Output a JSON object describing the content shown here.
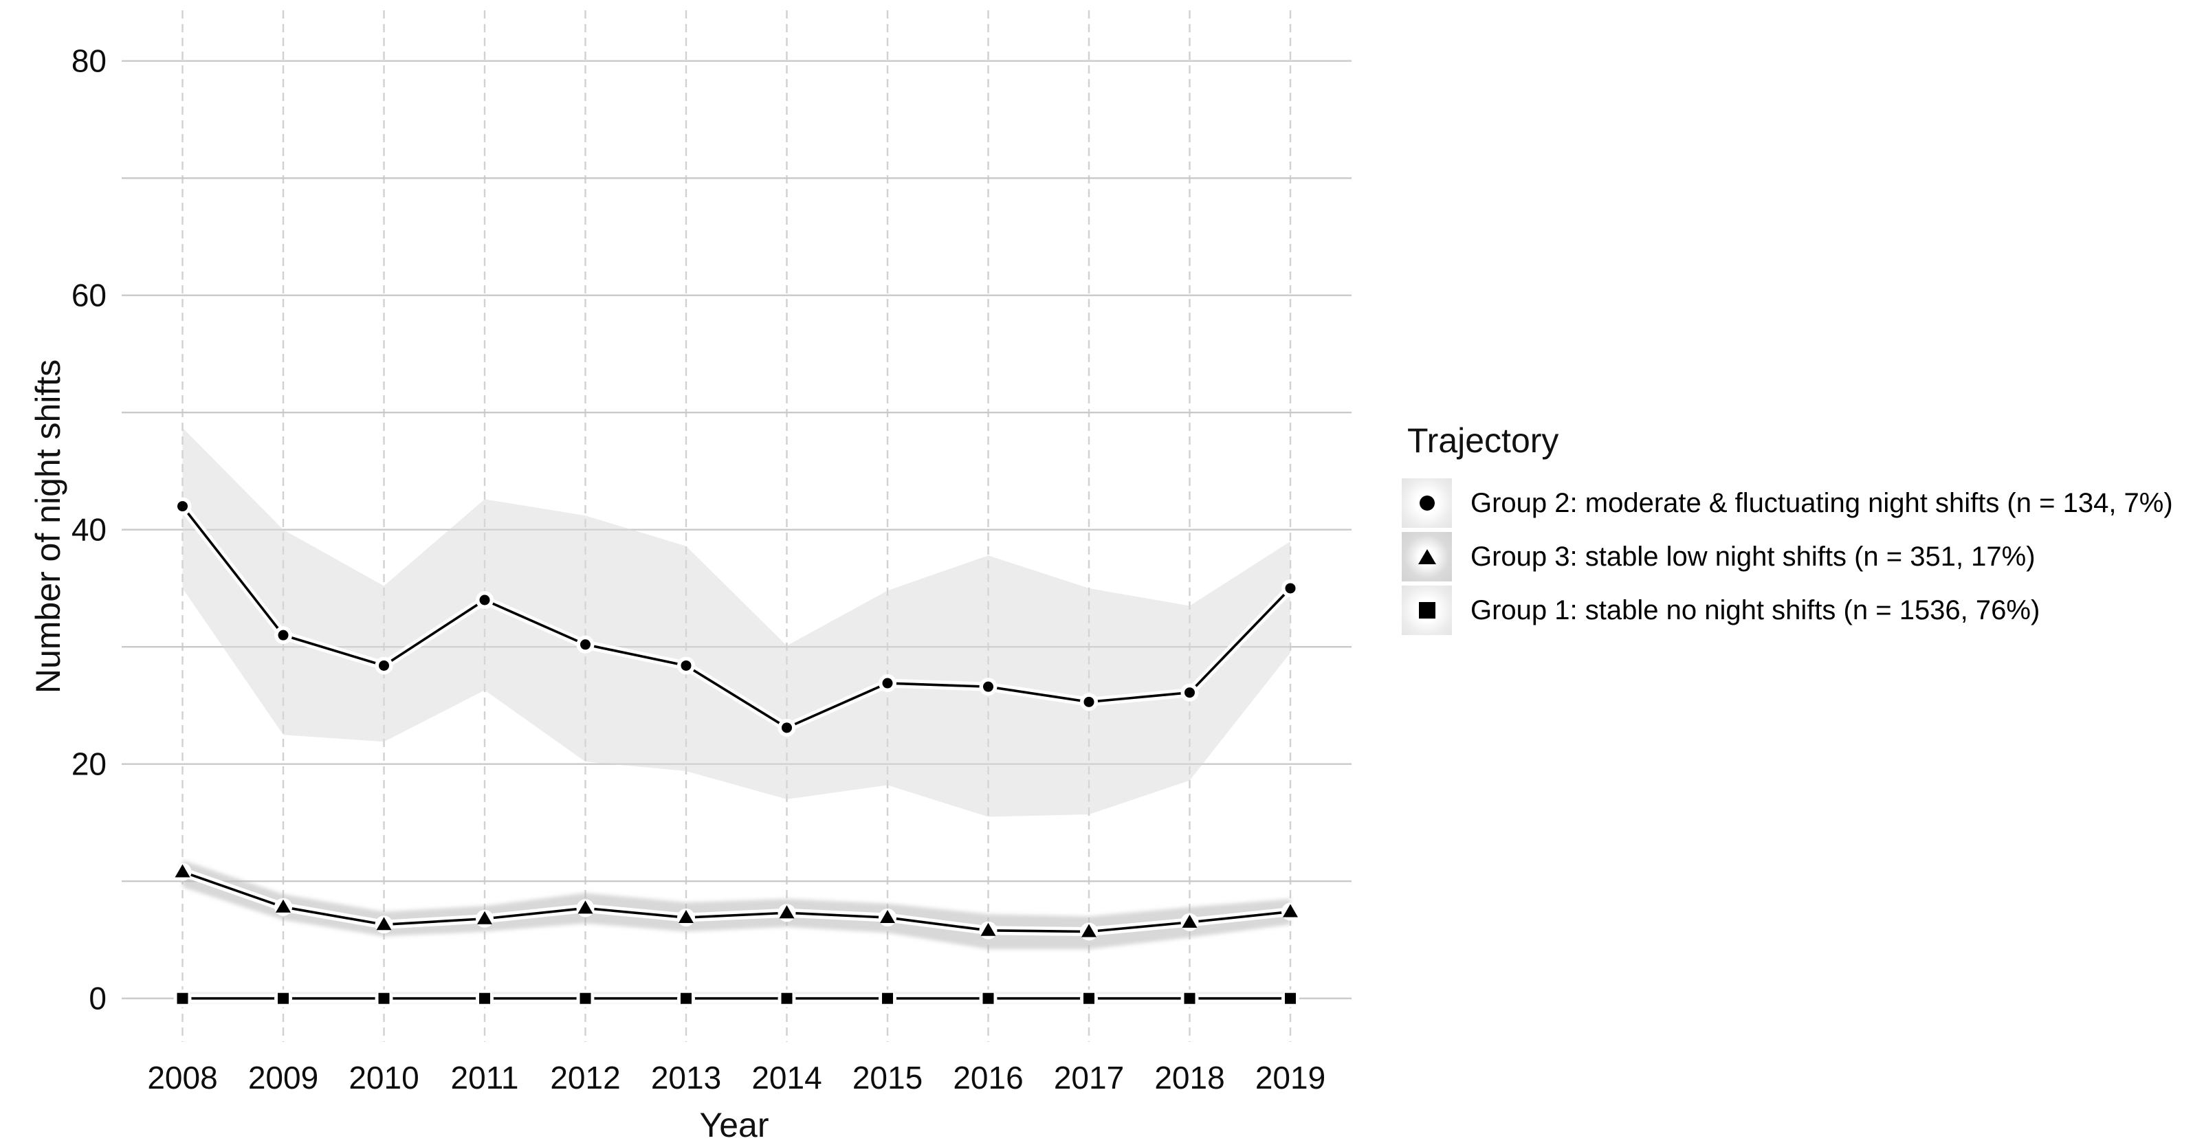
{
  "figure": {
    "background": "#ffffff",
    "kind": "longitudinal trajectory line chart with confidence ribbons"
  },
  "colors": {
    "line": "#000000",
    "text": "#111111",
    "tick_text": "#0d0d0d",
    "gridline": "#c9c9c9",
    "ribbon_group2": "#d9d9d9",
    "ribbon_group3": "#b8b8b8",
    "ribbon_group1": "#c2c2c2",
    "halo": "#ffffff",
    "legend_key_light": "#ececec",
    "legend_key_mid": "#d6d6d6"
  },
  "axes": {
    "x_title": "Year",
    "y_title": "Number of night shifts",
    "x_tick_labels": [
      "2008",
      "2009",
      "2010",
      "2011",
      "2012",
      "2013",
      "2014",
      "2015",
      "2016",
      "2017",
      "2018",
      "2019"
    ],
    "y_tick_labels": [
      "0",
      "20",
      "40",
      "60",
      "80"
    ]
  },
  "legend": {
    "title": "Trajectory",
    "items": [
      {
        "label": "Group 2: moderate & fluctuating night shifts (n = 134, 7%)",
        "marker": "circle-icon",
        "marker_class": "key-marker marker-circle",
        "key_class": "legend-key key-light"
      },
      {
        "label": "Group 3: stable low night shifts (n = 351, 17%)",
        "marker": "triangle-icon",
        "marker_class": "key-marker marker-triangle",
        "key_class": "legend-key key-mid"
      },
      {
        "label": "Group 1: stable no night shifts (n = 1536, 76%)",
        "marker": "square-icon",
        "marker_class": "key-marker marker-square",
        "key_class": "legend-key key-light"
      }
    ]
  },
  "chart_data": {
    "type": "line",
    "title": "",
    "xlabel": "Year",
    "ylabel": "Number of night shifts",
    "x": [
      2008,
      2009,
      2010,
      2011,
      2012,
      2013,
      2014,
      2015,
      2016,
      2017,
      2018,
      2019
    ],
    "y_ticks": [
      0,
      20,
      40,
      60,
      80
    ],
    "y_gridlines": [
      0,
      10,
      20,
      30,
      40,
      50,
      60,
      70,
      80
    ],
    "ylim": [
      0,
      80
    ],
    "grid": true,
    "legend_position": "right",
    "series": [
      {
        "name": "Group 2: moderate & fluctuating night shifts (n = 134, 7%)",
        "group": "group2",
        "marker": "circle",
        "values": [
          42,
          31,
          28.4,
          34,
          30.2,
          28.4,
          23.1,
          26.9,
          26.6,
          25.3,
          26.1,
          35
        ],
        "band_upper": [
          48.7,
          40,
          35.2,
          42.6,
          41.2,
          38.6,
          30.1,
          34.8,
          37.8,
          35,
          33.5,
          39
        ],
        "band_lower": [
          35,
          22.5,
          21.9,
          26.3,
          20.2,
          19.4,
          17,
          18.2,
          15.5,
          15.7,
          18.6,
          29.5
        ]
      },
      {
        "name": "Group 3: stable low night shifts (n = 351, 17%)",
        "group": "group3",
        "marker": "triangle",
        "values": [
          10.8,
          7.8,
          6.3,
          6.8,
          7.7,
          6.9,
          7.3,
          6.9,
          5.8,
          5.7,
          6.5,
          7.4
        ],
        "band_upper": [
          11.8,
          8.9,
          7.4,
          7.9,
          9.0,
          8.2,
          8.5,
          8.1,
          7.2,
          7.0,
          7.8,
          8.5
        ],
        "band_lower": [
          9.5,
          6.7,
          5.3,
          5.7,
          6.4,
          5.7,
          6.1,
          5.6,
          4.2,
          4.2,
          5.2,
          6.3
        ]
      },
      {
        "name": "Group 1: stable no night shifts (n = 1536, 76%)",
        "group": "group1",
        "marker": "square",
        "values": [
          0,
          0,
          0,
          0,
          0,
          0,
          0,
          0,
          0,
          0,
          0,
          0
        ],
        "band_upper": [
          0.5,
          0.5,
          0.5,
          0.5,
          0.5,
          0.5,
          0.5,
          0.5,
          0.5,
          0.5,
          0.5,
          0.5
        ],
        "band_lower": [
          -0.4,
          -0.4,
          -0.4,
          -0.4,
          -0.4,
          -0.4,
          -0.4,
          -0.4,
          -0.4,
          -0.4,
          -0.4,
          -0.4
        ]
      }
    ]
  }
}
